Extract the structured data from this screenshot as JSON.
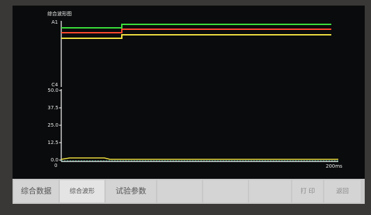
{
  "screen": {
    "title": "综合波形图",
    "top_plot": {
      "top_label": "A1",
      "bottom_label": "C4"
    },
    "bottom_plot": {
      "yticks": [
        "50.0",
        "37.5",
        "25.0",
        "12.5",
        "0.0"
      ],
      "x_start": "0",
      "x_end": "200ms"
    },
    "buttons": [
      "综合数据",
      "综合波形",
      "试验参数",
      "打 印",
      "返回"
    ]
  }
}
